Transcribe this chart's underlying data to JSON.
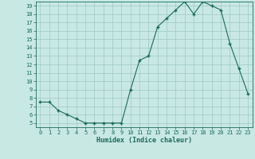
{
  "x": [
    0,
    1,
    2,
    3,
    4,
    5,
    6,
    7,
    8,
    9,
    10,
    11,
    12,
    13,
    14,
    15,
    16,
    17,
    18,
    19,
    20,
    21,
    22,
    23
  ],
  "y": [
    7.5,
    7.5,
    6.5,
    6.0,
    5.5,
    5.0,
    5.0,
    5.0,
    5.0,
    5.0,
    9.0,
    12.5,
    13.0,
    16.5,
    17.5,
    18.5,
    19.5,
    18.0,
    19.5,
    19.0,
    18.5,
    14.5,
    11.5,
    8.5
  ],
  "xlabel": "Humidex (Indice chaleur)",
  "ylim": [
    4.5,
    19.5
  ],
  "xlim": [
    -0.5,
    23.5
  ],
  "yticks": [
    5,
    6,
    7,
    8,
    9,
    10,
    11,
    12,
    13,
    14,
    15,
    16,
    17,
    18,
    19
  ],
  "xticks": [
    0,
    1,
    2,
    3,
    4,
    5,
    6,
    7,
    8,
    9,
    10,
    11,
    12,
    13,
    14,
    15,
    16,
    17,
    18,
    19,
    20,
    21,
    22,
    23
  ],
  "line_color": "#1a6b5a",
  "bg_color": "#c8e8e4",
  "grid_color": "#9fc8c4",
  "tick_color": "#1a6b5a",
  "xlabel_color": "#1a6b5a",
  "spine_color": "#1a6b5a"
}
